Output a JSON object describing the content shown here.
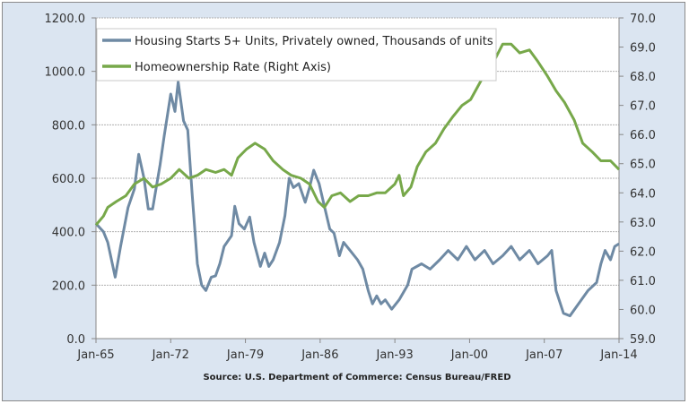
{
  "chart_data": {
    "type": "line",
    "title": "",
    "source": "Source: U.S. Department of Commerce: Census Bureau/FRED",
    "xlabel": "",
    "x_ticks": [
      "Jan-65",
      "Jan-72",
      "Jan-79",
      "Jan-86",
      "Jan-93",
      "Jan-00",
      "Jan-07",
      "Jan-14"
    ],
    "xlim": [
      1965,
      2014
    ],
    "left_axis": {
      "ylim": [
        0,
        1200
      ],
      "ticks": [
        "0.0",
        "200.0",
        "400.0",
        "600.0",
        "800.0",
        "1000.0",
        "1200.0"
      ]
    },
    "right_axis": {
      "ylim": [
        59,
        70
      ],
      "ticks": [
        "59.0",
        "60.0",
        "61.0",
        "62.0",
        "63.0",
        "64.0",
        "65.0",
        "66.0",
        "67.0",
        "68.0",
        "69.0",
        "70.0"
      ]
    },
    "grid": true,
    "legend_position": "top-left",
    "series": [
      {
        "name": "Housing Starts 5+ Units, Privately owned, Thousands of units",
        "axis": "left",
        "color": "#6f8aa4",
        "x": [
          1965.0,
          1965.7,
          1966.1,
          1966.8,
          1967.3,
          1968.0,
          1968.6,
          1969.0,
          1969.5,
          1969.9,
          1970.3,
          1971.0,
          1971.4,
          1972.0,
          1972.4,
          1972.7,
          1973.2,
          1973.6,
          1974.0,
          1974.5,
          1974.9,
          1975.3,
          1975.8,
          1976.2,
          1976.6,
          1977.0,
          1977.7,
          1978.0,
          1978.4,
          1978.9,
          1979.4,
          1979.8,
          1980.4,
          1980.8,
          1981.2,
          1981.6,
          1982.2,
          1982.7,
          1983.1,
          1983.5,
          1984.0,
          1984.6,
          1985.0,
          1985.4,
          1985.9,
          1986.4,
          1986.9,
          1987.3,
          1987.8,
          1988.2,
          1988.8,
          1989.5,
          1990.0,
          1990.5,
          1990.9,
          1991.3,
          1991.7,
          1992.1,
          1992.7,
          1993.4,
          1994.2,
          1994.6,
          1995.5,
          1996.3,
          1997.2,
          1998.0,
          1998.9,
          1999.7,
          2000.5,
          2001.4,
          2002.2,
          2003.1,
          2003.9,
          2004.7,
          2005.6,
          2006.4,
          2007.3,
          2007.7,
          2008.1,
          2008.8,
          2009.4,
          2010.2,
          2011.1,
          2011.9,
          2012.3,
          2012.7,
          2013.2,
          2013.6,
          2014.0
        ],
        "values": [
          430,
          400,
          360,
          230,
          345,
          490,
          560,
          690,
          600,
          485,
          485,
          650,
          760,
          915,
          850,
          960,
          815,
          780,
          545,
          280,
          200,
          180,
          230,
          235,
          280,
          345,
          385,
          495,
          430,
          410,
          455,
          360,
          270,
          320,
          270,
          295,
          360,
          460,
          600,
          565,
          580,
          510,
          565,
          630,
          580,
          495,
          410,
          395,
          310,
          360,
          330,
          295,
          260,
          180,
          130,
          160,
          130,
          145,
          110,
          145,
          200,
          260,
          280,
          260,
          295,
          330,
          295,
          345,
          295,
          330,
          280,
          310,
          345,
          295,
          330,
          280,
          310,
          330,
          180,
          95,
          85,
          130,
          180,
          210,
          280,
          330,
          295,
          345,
          355
        ]
      },
      {
        "name": "Homeownership Rate (Right Axis)",
        "axis": "right",
        "color": "#77a84a",
        "x": [
          1965.0,
          1965.7,
          1966.1,
          1966.9,
          1967.8,
          1968.6,
          1969.5,
          1970.3,
          1971.1,
          1972.0,
          1972.8,
          1973.7,
          1974.5,
          1975.3,
          1976.2,
          1977.0,
          1977.7,
          1978.3,
          1979.1,
          1979.9,
          1980.8,
          1981.6,
          1982.5,
          1983.3,
          1984.2,
          1985.0,
          1985.8,
          1986.4,
          1987.1,
          1987.9,
          1988.8,
          1989.6,
          1990.5,
          1991.3,
          1992.1,
          1993.0,
          1993.4,
          1993.8,
          1994.5,
          1995.1,
          1995.9,
          1996.8,
          1997.6,
          1998.4,
          1999.3,
          2000.1,
          2001.0,
          2001.8,
          2002.4,
          2003.1,
          2003.9,
          2004.7,
          2005.6,
          2006.4,
          2007.3,
          2008.1,
          2008.9,
          2009.8,
          2010.6,
          2011.5,
          2012.3,
          2013.2,
          2014.0
        ],
        "values": [
          62.9,
          63.2,
          63.5,
          63.7,
          63.9,
          64.3,
          64.5,
          64.2,
          64.3,
          64.5,
          64.8,
          64.5,
          64.6,
          64.8,
          64.7,
          64.8,
          64.6,
          65.2,
          65.5,
          65.7,
          65.5,
          65.1,
          64.8,
          64.6,
          64.5,
          64.3,
          63.7,
          63.5,
          63.9,
          64.0,
          63.7,
          63.9,
          63.9,
          64.0,
          64.0,
          64.3,
          64.6,
          63.9,
          64.2,
          64.9,
          65.4,
          65.7,
          66.2,
          66.6,
          67.0,
          67.2,
          67.8,
          68.3,
          68.6,
          69.1,
          69.1,
          68.8,
          68.9,
          68.5,
          68.0,
          67.5,
          67.1,
          66.5,
          65.7,
          65.4,
          65.1,
          65.1,
          64.8
        ]
      }
    ]
  }
}
